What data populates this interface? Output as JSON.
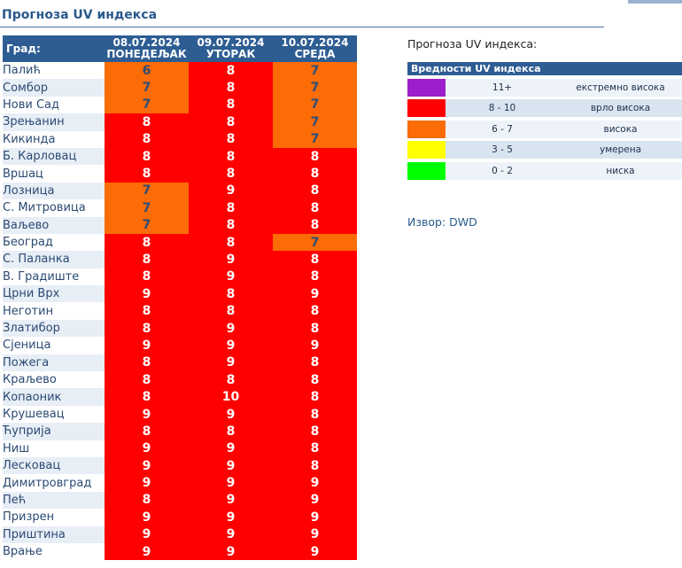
{
  "page_title": "Прогноза UV индекса",
  "table": {
    "city_header": "Град:",
    "days": [
      {
        "date": "08.07.2024",
        "weekday": "ПОНЕДЕЉАК"
      },
      {
        "date": "09.07.2024",
        "weekday": "УТОРАК"
      },
      {
        "date": "10.07.2024",
        "weekday": "СРЕДА"
      }
    ],
    "rows": [
      {
        "city": "Палић",
        "values": [
          "6",
          "8",
          "7"
        ]
      },
      {
        "city": "Сомбор",
        "values": [
          "7",
          "8",
          "7"
        ]
      },
      {
        "city": "Нови Сад",
        "values": [
          "7",
          "8",
          "7"
        ]
      },
      {
        "city": "Зрењанин",
        "values": [
          "8",
          "8",
          "7"
        ]
      },
      {
        "city": "Кикинда",
        "values": [
          "8",
          "8",
          "7"
        ]
      },
      {
        "city": "Б. Карловац",
        "values": [
          "8",
          "8",
          "8"
        ]
      },
      {
        "city": "Вршац",
        "values": [
          "8",
          "8",
          "8"
        ]
      },
      {
        "city": "Лозница",
        "values": [
          "7",
          "9",
          "8"
        ]
      },
      {
        "city": "С. Митровица",
        "values": [
          "7",
          "8",
          "8"
        ]
      },
      {
        "city": "Ваљево",
        "values": [
          "7",
          "8",
          "8"
        ]
      },
      {
        "city": "Београд",
        "values": [
          "8",
          "8",
          "7"
        ]
      },
      {
        "city": "С. Паланка",
        "values": [
          "8",
          "9",
          "8"
        ]
      },
      {
        "city": "В. Градиште",
        "values": [
          "8",
          "9",
          "8"
        ]
      },
      {
        "city": "Црни Врх",
        "values": [
          "9",
          "8",
          "9"
        ]
      },
      {
        "city": "Неготин",
        "values": [
          "8",
          "8",
          "8"
        ]
      },
      {
        "city": "Златибор",
        "values": [
          "8",
          "9",
          "8"
        ]
      },
      {
        "city": "Сјеница",
        "values": [
          "9",
          "9",
          "9"
        ]
      },
      {
        "city": "Пожега",
        "values": [
          "8",
          "9",
          "8"
        ]
      },
      {
        "city": "Краљево",
        "values": [
          "8",
          "8",
          "8"
        ]
      },
      {
        "city": "Копаоник",
        "values": [
          "8",
          "10",
          "8"
        ]
      },
      {
        "city": "Крушевац",
        "values": [
          "9",
          "9",
          "8"
        ]
      },
      {
        "city": "Ћуприја",
        "values": [
          "8",
          "8",
          "8"
        ]
      },
      {
        "city": "Ниш",
        "values": [
          "9",
          "9",
          "8"
        ]
      },
      {
        "city": "Лесковац",
        "values": [
          "9",
          "9",
          "8"
        ]
      },
      {
        "city": "Димитровград",
        "values": [
          "9",
          "9",
          "9"
        ]
      },
      {
        "city": "Пећ",
        "values": [
          "8",
          "9",
          "9"
        ]
      },
      {
        "city": "Призрен",
        "values": [
          "9",
          "9",
          "9"
        ]
      },
      {
        "city": "Приштина",
        "values": [
          "9",
          "9",
          "9"
        ]
      },
      {
        "city": "Врање",
        "values": [
          "9",
          "9",
          "9"
        ]
      }
    ]
  },
  "legend": {
    "title": "Прогноза UV индекса:",
    "header": "Вредности UV индекса",
    "items": [
      {
        "range": "11+",
        "label": "екстремно висока",
        "color": "#9b1fcc"
      },
      {
        "range": "8 - 10",
        "label": "врло висока",
        "color": "#ff0000"
      },
      {
        "range": "6 - 7",
        "label": "висока",
        "color": "#fb6c06"
      },
      {
        "range": "3 - 5",
        "label": "умерена",
        "color": "#ffff00"
      },
      {
        "range": "0 - 2",
        "label": "ниска",
        "color": "#00ff00"
      }
    ]
  },
  "source": "Извор: DWD",
  "colors": {
    "header_bg": "#2e5d93",
    "high": "#fb6c06",
    "very_high": "#ff0000",
    "title": "#2a5a8c"
  }
}
